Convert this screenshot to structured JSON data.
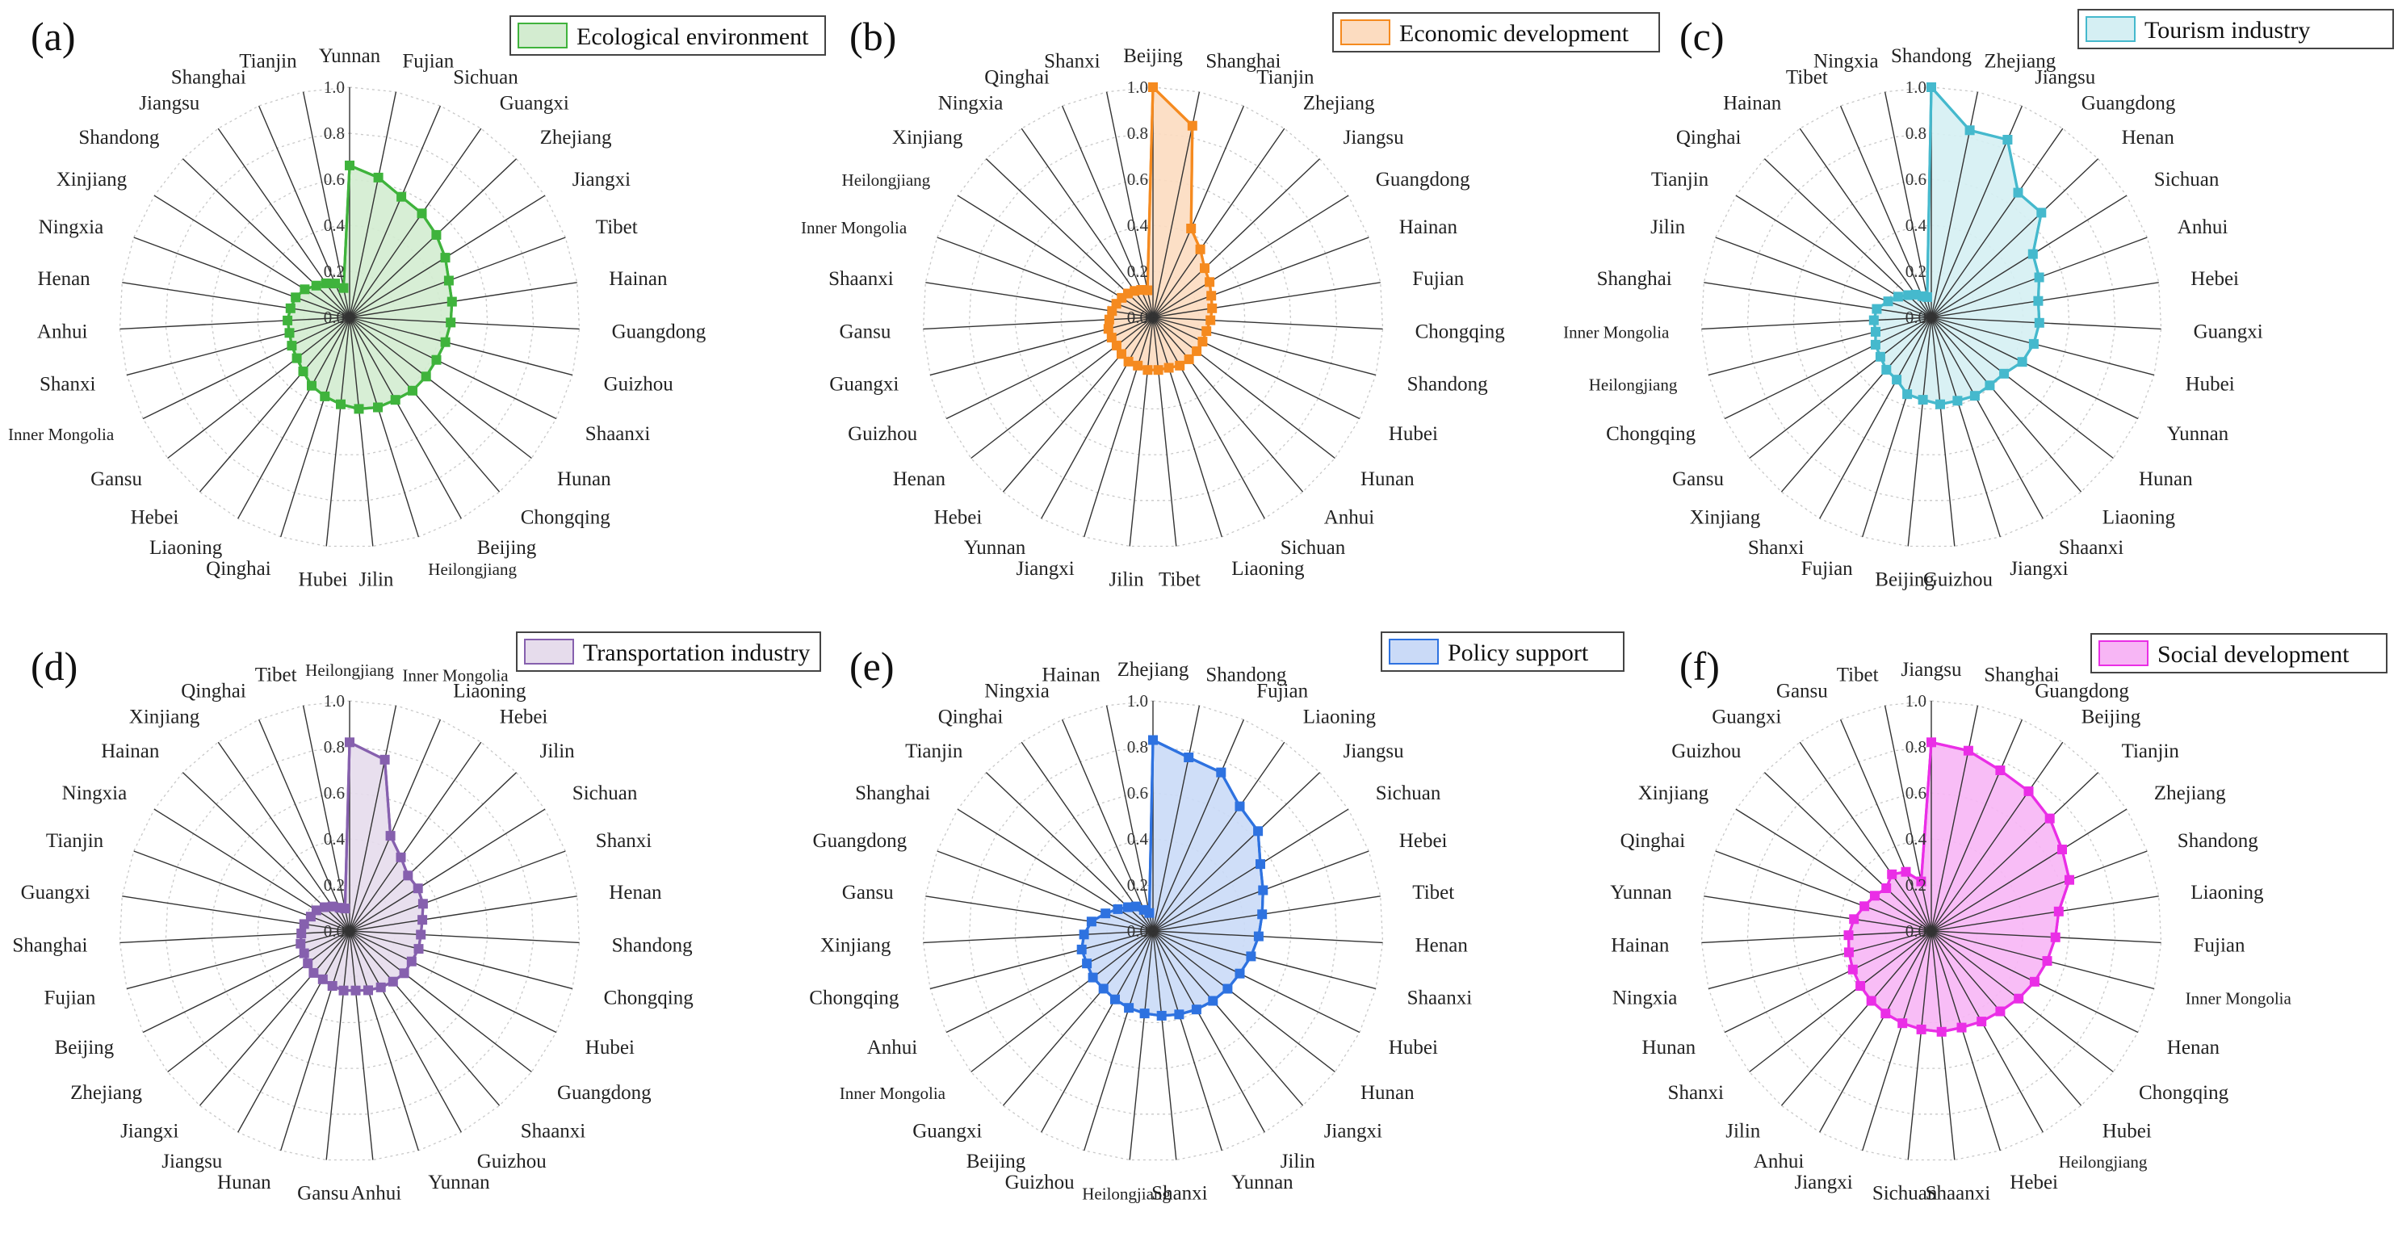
{
  "figure": {
    "axis_ticks": [
      "0.0",
      "0.2",
      "0.4",
      "0.6",
      "0.8",
      "1.0"
    ]
  },
  "chart_data": [
    {
      "panel": "(a)",
      "type": "radar",
      "title": "Ecological environment",
      "color": "#3fb33c",
      "fill": "#d3ecd0",
      "rlim": [
        0,
        1
      ],
      "categories": [
        "Yunnan",
        "Fujian",
        "Sichuan",
        "Guangxi",
        "Zhejiang",
        "Jiangxi",
        "Tibet",
        "Hainan",
        "Guangdong",
        "Guizhou",
        "Shaanxi",
        "Hunan",
        "Chongqing",
        "Beijing",
        "Heilongjiang",
        "Jilin",
        "Hubei",
        "Qinghai",
        "Liaoning",
        "Hebei",
        "Gansu",
        "Inner Mongolia",
        "Shanxi",
        "Anhui",
        "Henan",
        "Ningxia",
        "Xinjiang",
        "Shandong",
        "Jiangsu",
        "Shanghai",
        "Tianjin"
      ],
      "values": [
        0.66,
        0.62,
        0.57,
        0.55,
        0.52,
        0.49,
        0.46,
        0.45,
        0.44,
        0.43,
        0.42,
        0.42,
        0.42,
        0.41,
        0.41,
        0.4,
        0.38,
        0.36,
        0.34,
        0.31,
        0.29,
        0.28,
        0.27,
        0.27,
        0.26,
        0.25,
        0.23,
        0.2,
        0.18,
        0.16,
        0.13
      ]
    },
    {
      "panel": "(b)",
      "type": "radar",
      "title": "Economic development",
      "color": "#f58a1f",
      "fill": "#fcdcc0",
      "rlim": [
        0,
        1
      ],
      "categories": [
        "Beijing",
        "Shanghai",
        "Tianjin",
        "Zhejiang",
        "Jiangsu",
        "Guangdong",
        "Hainan",
        "Fujian",
        "Chongqing",
        "Shandong",
        "Hubei",
        "Hunan",
        "Anhui",
        "Sichuan",
        "Liaoning",
        "Tibet",
        "Jilin",
        "Jiangxi",
        "Yunnan",
        "Hebei",
        "Henan",
        "Guizhou",
        "Guangxi",
        "Gansu",
        "Shaanxi",
        "Inner Mongolia",
        "Heilongjiang",
        "Xinjiang",
        "Ningxia",
        "Qinghai",
        "Shanxi"
      ],
      "values": [
        1.0,
        0.85,
        0.42,
        0.36,
        0.31,
        0.29,
        0.27,
        0.26,
        0.25,
        0.24,
        0.24,
        0.24,
        0.24,
        0.24,
        0.23,
        0.23,
        0.23,
        0.22,
        0.22,
        0.21,
        0.2,
        0.2,
        0.2,
        0.19,
        0.18,
        0.17,
        0.16,
        0.15,
        0.14,
        0.13,
        0.12
      ]
    },
    {
      "panel": "(c)",
      "type": "radar",
      "title": "Tourism industry",
      "color": "#45b9cd",
      "fill": "#d5eff3",
      "rlim": [
        0,
        1
      ],
      "categories": [
        "Shandong",
        "Zhejiang",
        "Jiangsu",
        "Guangdong",
        "Henan",
        "Sichuan",
        "Anhui",
        "Hebei",
        "Guangxi",
        "Hubei",
        "Yunnan",
        "Hunan",
        "Liaoning",
        "Shaanxi",
        "Jiangxi",
        "Guizhou",
        "Beijing",
        "Fujian",
        "Shanxi",
        "Xinjiang",
        "Gansu",
        "Chongqing",
        "Heilongjiang",
        "Inner Mongolia",
        "Shanghai",
        "Jilin",
        "Tianjin",
        "Qinghai",
        "Hainan",
        "Tibet",
        "Ningxia"
      ],
      "values": [
        1.0,
        0.83,
        0.84,
        0.66,
        0.66,
        0.52,
        0.5,
        0.47,
        0.47,
        0.46,
        0.44,
        0.4,
        0.39,
        0.39,
        0.38,
        0.38,
        0.36,
        0.35,
        0.31,
        0.3,
        0.28,
        0.27,
        0.25,
        0.25,
        0.24,
        0.2,
        0.17,
        0.14,
        0.12,
        0.1,
        0.09
      ]
    },
    {
      "panel": "(d)",
      "type": "radar",
      "title": "Transportation industry",
      "color": "#8660ae",
      "fill": "#e6dcec",
      "rlim": [
        0,
        1
      ],
      "categories": [
        "Heilongjiang",
        "Inner Mongolia",
        "Liaoning",
        "Hebei",
        "Jilin",
        "Sichuan",
        "Shanxi",
        "Henan",
        "Shandong",
        "Chongqing",
        "Hubei",
        "Guangdong",
        "Shaanxi",
        "Guizhou",
        "Yunnan",
        "Anhui",
        "Gansu",
        "Hunan",
        "Jiangsu",
        "Jiangxi",
        "Zhejiang",
        "Beijing",
        "Fujian",
        "Shanghai",
        "Guangxi",
        "Tianjin",
        "Ningxia",
        "Hainan",
        "Xinjiang",
        "Qinghai",
        "Tibet"
      ],
      "values": [
        0.82,
        0.76,
        0.45,
        0.39,
        0.35,
        0.35,
        0.34,
        0.32,
        0.31,
        0.31,
        0.3,
        0.3,
        0.29,
        0.28,
        0.27,
        0.26,
        0.26,
        0.25,
        0.24,
        0.24,
        0.23,
        0.22,
        0.22,
        0.21,
        0.2,
        0.18,
        0.17,
        0.15,
        0.13,
        0.11,
        0.1
      ]
    },
    {
      "panel": "(e)",
      "type": "radar",
      "title": "Policy support",
      "color": "#2e72e0",
      "fill": "#cadaf7",
      "rlim": [
        0,
        1
      ],
      "categories": [
        "Zhejiang",
        "Shandong",
        "Fujian",
        "Liaoning",
        "Jiangsu",
        "Sichuan",
        "Hebei",
        "Tibet",
        "Henan",
        "Shaanxi",
        "Hubei",
        "Hunan",
        "Jiangxi",
        "Jilin",
        "Yunnan",
        "Shanxi",
        "Heilongjiang",
        "Guizhou",
        "Beijing",
        "Guangxi",
        "Inner Mongolia",
        "Anhui",
        "Chongqing",
        "Xinjiang",
        "Gansu",
        "Guangdong",
        "Shanghai",
        "Tianjin",
        "Qinghai",
        "Ningxia",
        "Hainan"
      ],
      "values": [
        0.83,
        0.77,
        0.75,
        0.66,
        0.63,
        0.55,
        0.51,
        0.48,
        0.46,
        0.44,
        0.42,
        0.41,
        0.4,
        0.39,
        0.38,
        0.37,
        0.36,
        0.35,
        0.34,
        0.33,
        0.33,
        0.32,
        0.32,
        0.3,
        0.27,
        0.22,
        0.18,
        0.15,
        0.13,
        0.1,
        0.08
      ]
    },
    {
      "panel": "(f)",
      "type": "radar",
      "title": "Social development",
      "color": "#ea2ee6",
      "fill": "#f7b6f5",
      "rlim": [
        0,
        1
      ],
      "categories": [
        "Jiangsu",
        "Shanghai",
        "Guangdong",
        "Beijing",
        "Tianjin",
        "Zhejiang",
        "Shandong",
        "Liaoning",
        "Fujian",
        "Inner Mongolia",
        "Henan",
        "Chongqing",
        "Hubei",
        "Heilongjiang",
        "Hebei",
        "Shaanxi",
        "Sichuan",
        "Jiangxi",
        "Anhui",
        "Jilin",
        "Shanxi",
        "Hunan",
        "Ningxia",
        "Hainan",
        "Yunnan",
        "Qinghai",
        "Xinjiang",
        "Guizhou",
        "Guangxi",
        "Gansu",
        "Tibet"
      ],
      "values": [
        0.82,
        0.8,
        0.76,
        0.74,
        0.71,
        0.67,
        0.64,
        0.56,
        0.54,
        0.52,
        0.5,
        0.48,
        0.46,
        0.45,
        0.44,
        0.44,
        0.43,
        0.42,
        0.41,
        0.4,
        0.39,
        0.38,
        0.37,
        0.36,
        0.34,
        0.31,
        0.29,
        0.27,
        0.3,
        0.28,
        0.22
      ]
    }
  ]
}
